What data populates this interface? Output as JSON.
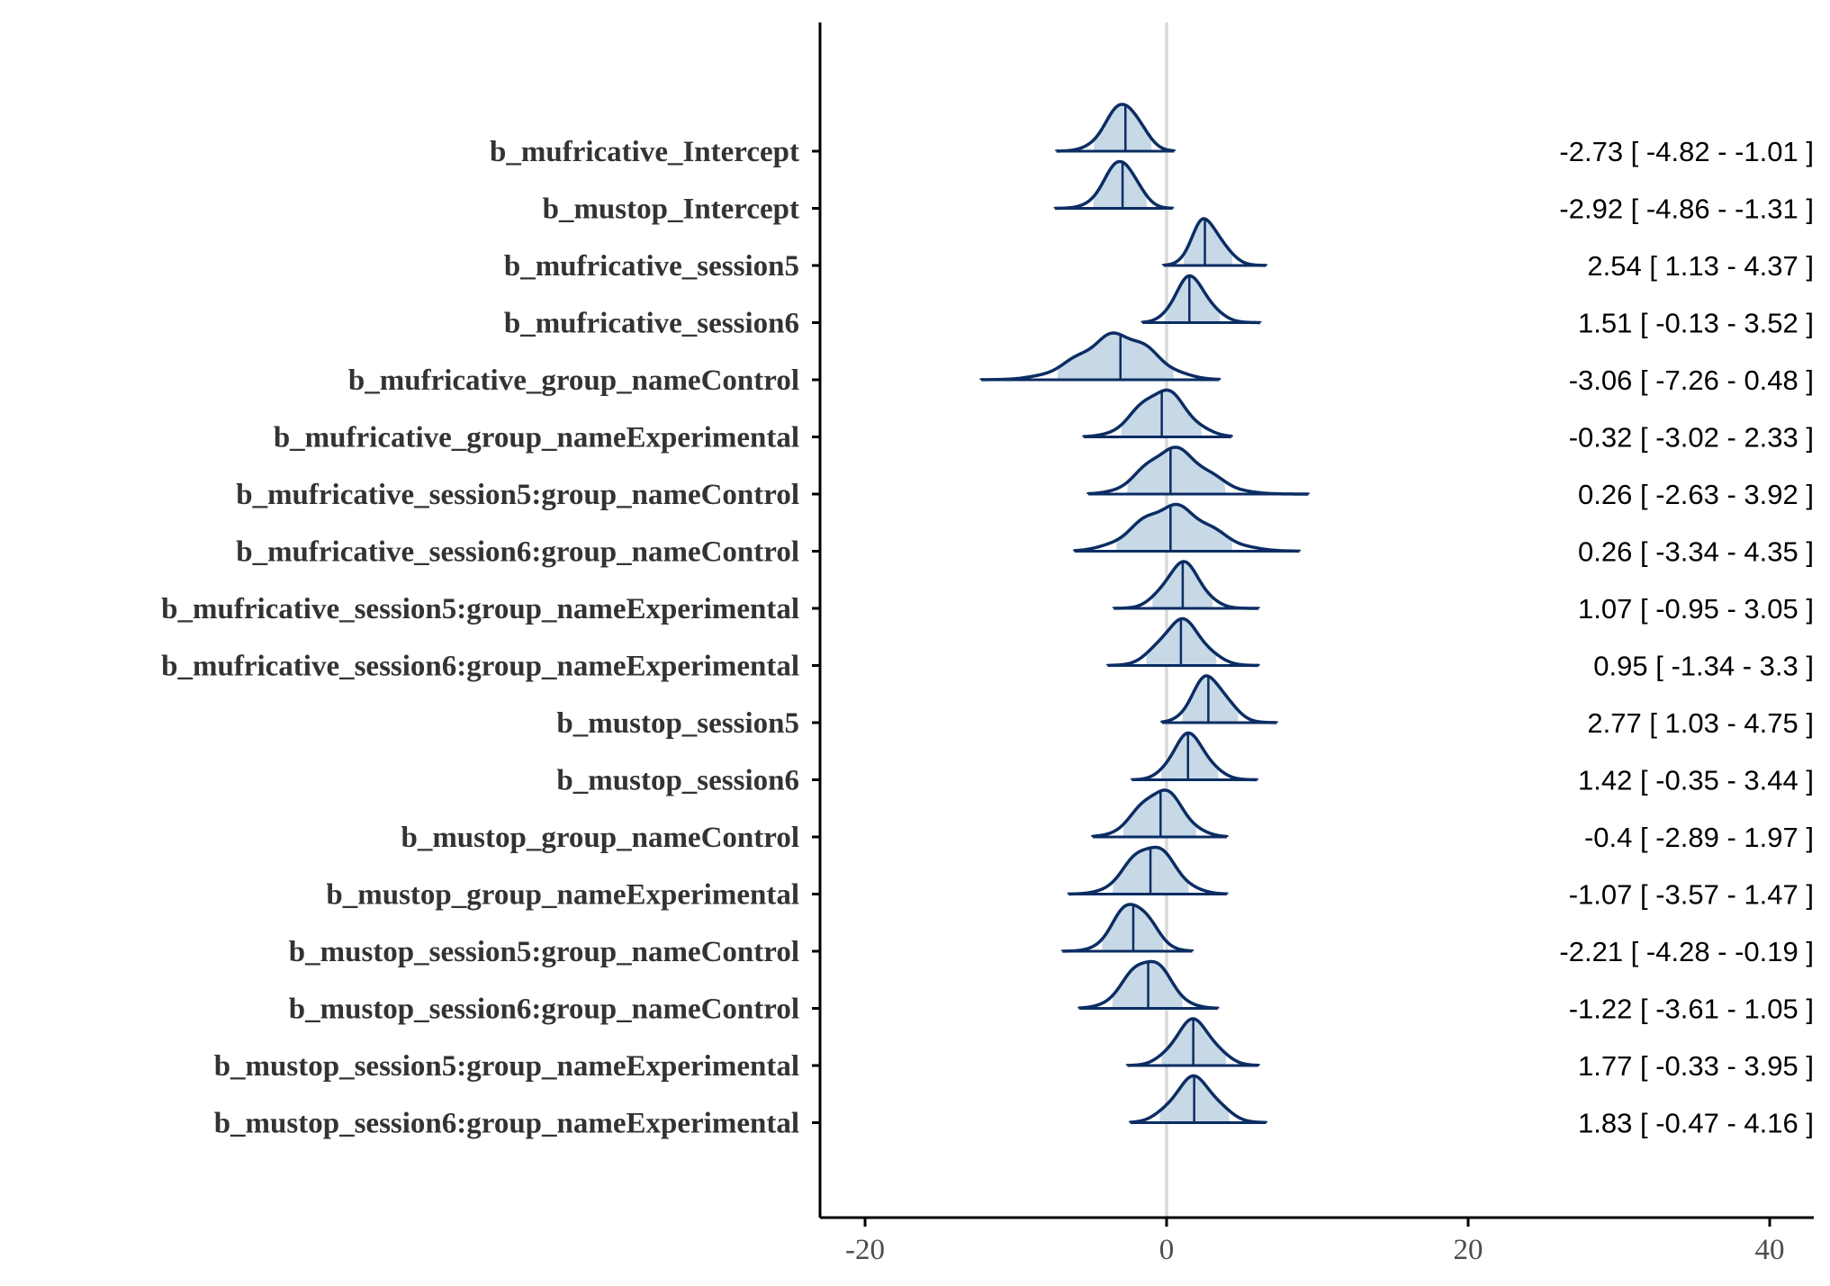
{
  "chart_data": {
    "type": "ridgeline",
    "xlim": [
      -23,
      43
    ],
    "x_ticks": [
      -20,
      0,
      20,
      40
    ],
    "x_tick_labels": [
      "-20",
      "0",
      "20",
      "40"
    ],
    "reference_line_x": 0,
    "colors": {
      "density_line": "#0b2d63",
      "interval_fill": "#c7d8e6",
      "reference_line": "#d9d9d9",
      "axis": "#000000"
    },
    "parameters": [
      {
        "label": "b_mufricative_Intercept",
        "estimate": -2.73,
        "lower": -4.82,
        "upper": -1.01,
        "min": -7.3,
        "max": 0.5,
        "interval_text": "-2.73 [ -4.82 - -1.01 ]"
      },
      {
        "label": "b_mustop_Intercept",
        "estimate": -2.92,
        "lower": -4.86,
        "upper": -1.31,
        "min": -7.4,
        "max": 0.4,
        "interval_text": "-2.92 [ -4.86 - -1.31 ]"
      },
      {
        "label": "b_mufricative_session5",
        "estimate": 2.54,
        "lower": 1.13,
        "upper": 4.37,
        "min": -0.2,
        "max": 6.6,
        "interval_text": "2.54 [ 1.13 - 4.37 ]"
      },
      {
        "label": "b_mufricative_session6",
        "estimate": 1.51,
        "lower": -0.13,
        "upper": 3.52,
        "min": -1.6,
        "max": 6.2,
        "interval_text": "1.51 [ -0.13 - 3.52 ]"
      },
      {
        "label": "b_mufricative_group_nameControl",
        "estimate": -3.06,
        "lower": -7.26,
        "upper": 0.48,
        "min": -12.3,
        "max": 3.5,
        "interval_text": "-3.06 [ -7.26 - 0.48 ]"
      },
      {
        "label": "b_mufricative_group_nameExperimental",
        "estimate": -0.32,
        "lower": -3.02,
        "upper": 2.33,
        "min": -5.5,
        "max": 4.3,
        "interval_text": "-0.32 [ -3.02 - 2.33 ]"
      },
      {
        "label": "b_mufricative_session5:group_nameControl",
        "estimate": 0.26,
        "lower": -2.63,
        "upper": 3.92,
        "min": -5.2,
        "max": 9.4,
        "interval_text": "0.26 [ -2.63 - 3.92 ]"
      },
      {
        "label": "b_mufricative_session6:group_nameControl",
        "estimate": 0.26,
        "lower": -3.34,
        "upper": 4.35,
        "min": -6.1,
        "max": 8.8,
        "interval_text": "0.26 [ -3.34 - 4.35 ]"
      },
      {
        "label": "b_mufricative_session5:group_nameExperimental",
        "estimate": 1.07,
        "lower": -0.95,
        "upper": 3.05,
        "min": -3.5,
        "max": 6.1,
        "interval_text": "1.07 [ -0.95 - 3.05 ]"
      },
      {
        "label": "b_mufricative_session6:group_nameExperimental",
        "estimate": 0.95,
        "lower": -1.34,
        "upper": 3.3,
        "min": -3.9,
        "max": 6.1,
        "interval_text": "0.95 [ -1.34 - 3.3 ]"
      },
      {
        "label": "b_mustop_session5",
        "estimate": 2.77,
        "lower": 1.03,
        "upper": 4.75,
        "min": -0.3,
        "max": 7.3,
        "interval_text": "2.77 [ 1.03 - 4.75 ]"
      },
      {
        "label": "b_mustop_session6",
        "estimate": 1.42,
        "lower": -0.35,
        "upper": 3.44,
        "min": -2.3,
        "max": 6.0,
        "interval_text": "1.42 [ -0.35 - 3.44 ]"
      },
      {
        "label": "b_mustop_group_nameControl",
        "estimate": -0.4,
        "lower": -2.89,
        "upper": 1.97,
        "min": -4.9,
        "max": 4.0,
        "interval_text": "-0.4 [ -2.89 - 1.97 ]"
      },
      {
        "label": "b_mustop_group_nameExperimental",
        "estimate": -1.07,
        "lower": -3.57,
        "upper": 1.47,
        "min": -6.5,
        "max": 4.0,
        "interval_text": "-1.07 [ -3.57 - 1.47 ]"
      },
      {
        "label": "b_mustop_session5:group_nameControl",
        "estimate": -2.21,
        "lower": -4.28,
        "upper": -0.19,
        "min": -6.9,
        "max": 1.7,
        "interval_text": "-2.21 [ -4.28 - -0.19 ]"
      },
      {
        "label": "b_mustop_session6:group_nameControl",
        "estimate": -1.22,
        "lower": -3.61,
        "upper": 1.05,
        "min": -5.8,
        "max": 3.4,
        "interval_text": "-1.22 [ -3.61 - 1.05 ]"
      },
      {
        "label": "b_mustop_session5:group_nameExperimental",
        "estimate": 1.77,
        "lower": -0.33,
        "upper": 3.95,
        "min": -2.6,
        "max": 6.1,
        "interval_text": "1.77 [ -0.33 - 3.95 ]"
      },
      {
        "label": "b_mustop_session6:group_nameExperimental",
        "estimate": 1.83,
        "lower": -0.47,
        "upper": 4.16,
        "min": -2.4,
        "max": 6.6,
        "interval_text": "1.83 [ -0.47 - 4.16 ]"
      }
    ]
  }
}
